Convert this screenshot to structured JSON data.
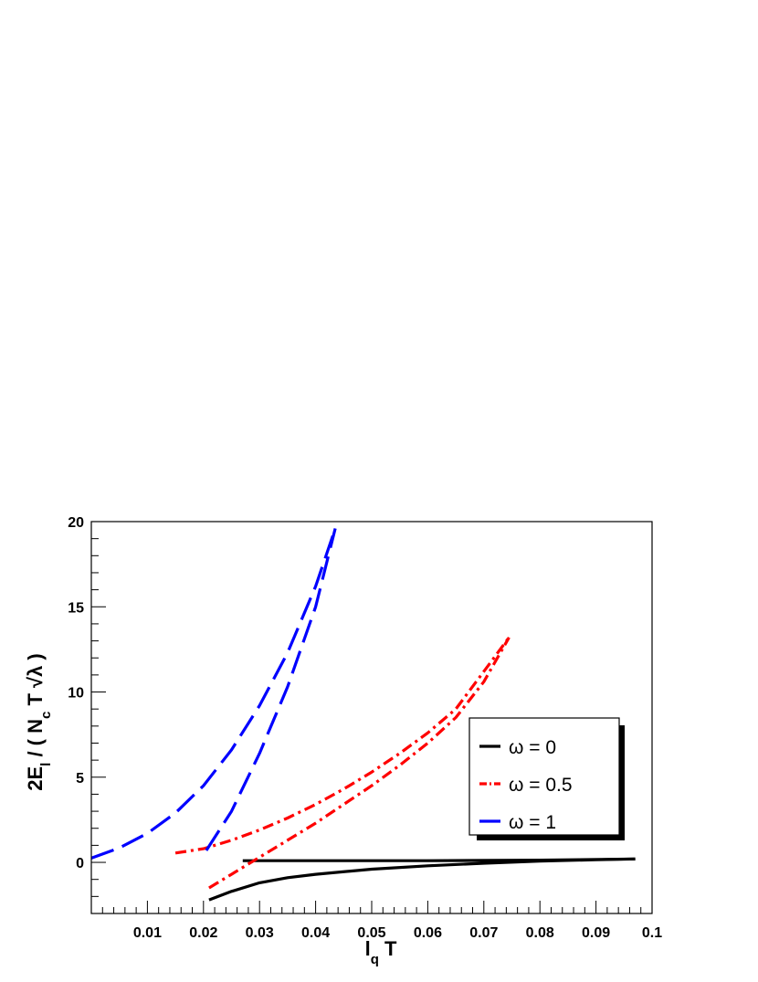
{
  "chart_data": {
    "type": "line",
    "xlabel": "l_q T",
    "ylabel": "2E_l / ( N_c T √λ )",
    "xlim": [
      0.0,
      0.1
    ],
    "ylim": [
      -3,
      20
    ],
    "x_ticks": [
      0.01,
      0.02,
      0.03,
      0.04,
      0.05,
      0.06,
      0.07,
      0.08,
      0.09,
      0.1
    ],
    "x_tick_labels": [
      "0.01",
      "0.02",
      "0.03",
      "0.04",
      "0.05",
      "0.06",
      "0.07",
      "0.08",
      "0.09",
      "0.1"
    ],
    "y_ticks": [
      0,
      5,
      10,
      15,
      20
    ],
    "y_tick_labels": [
      "0",
      "5",
      "10",
      "15",
      "20"
    ],
    "grid": false,
    "legend_position": "right",
    "series": [
      {
        "name": "ω = 0",
        "color": "#000000",
        "style": "solid",
        "branches": [
          [
            [
              0.027,
              0.1
            ],
            [
              0.04,
              0.1
            ],
            [
              0.06,
              0.1
            ],
            [
              0.08,
              0.13
            ],
            [
              0.097,
              0.2
            ]
          ],
          [
            [
              0.021,
              -2.2
            ],
            [
              0.025,
              -1.7
            ],
            [
              0.03,
              -1.2
            ],
            [
              0.035,
              -0.9
            ],
            [
              0.04,
              -0.7
            ],
            [
              0.05,
              -0.4
            ],
            [
              0.06,
              -0.2
            ],
            [
              0.07,
              -0.05
            ],
            [
              0.08,
              0.08
            ],
            [
              0.09,
              0.15
            ],
            [
              0.097,
              0.2
            ]
          ]
        ]
      },
      {
        "name": "ω = 0.5",
        "color": "#ff0000",
        "style": "dashdot",
        "branches": [
          [
            [
              0.015,
              0.55
            ],
            [
              0.02,
              0.8
            ],
            [
              0.025,
              1.3
            ],
            [
              0.03,
              1.9
            ],
            [
              0.035,
              2.6
            ],
            [
              0.04,
              3.4
            ],
            [
              0.045,
              4.3
            ],
            [
              0.05,
              5.3
            ],
            [
              0.055,
              6.4
            ],
            [
              0.06,
              7.6
            ],
            [
              0.065,
              9.0
            ],
            [
              0.07,
              11.2
            ],
            [
              0.0745,
              13.2
            ]
          ],
          [
            [
              0.021,
              -1.5
            ],
            [
              0.025,
              -0.7
            ],
            [
              0.03,
              0.3
            ],
            [
              0.035,
              1.3
            ],
            [
              0.04,
              2.3
            ],
            [
              0.045,
              3.4
            ],
            [
              0.05,
              4.5
            ],
            [
              0.055,
              5.7
            ],
            [
              0.06,
              7.0
            ],
            [
              0.065,
              8.5
            ],
            [
              0.07,
              10.6
            ],
            [
              0.0745,
              13.2
            ]
          ]
        ]
      },
      {
        "name": "ω = 1",
        "color": "#0000ff",
        "style": "dashed",
        "branches": [
          [
            [
              0.0,
              0.25
            ],
            [
              0.005,
              0.85
            ],
            [
              0.01,
              1.7
            ],
            [
              0.015,
              2.9
            ],
            [
              0.02,
              4.5
            ],
            [
              0.025,
              6.6
            ],
            [
              0.03,
              9.2
            ],
            [
              0.035,
              12.3
            ],
            [
              0.04,
              16.2
            ],
            [
              0.0435,
              19.6
            ]
          ],
          [
            [
              0.0205,
              0.7
            ],
            [
              0.025,
              3.0
            ],
            [
              0.03,
              6.4
            ],
            [
              0.035,
              10.3
            ],
            [
              0.04,
              15.0
            ],
            [
              0.0435,
              19.6
            ]
          ]
        ]
      }
    ]
  }
}
